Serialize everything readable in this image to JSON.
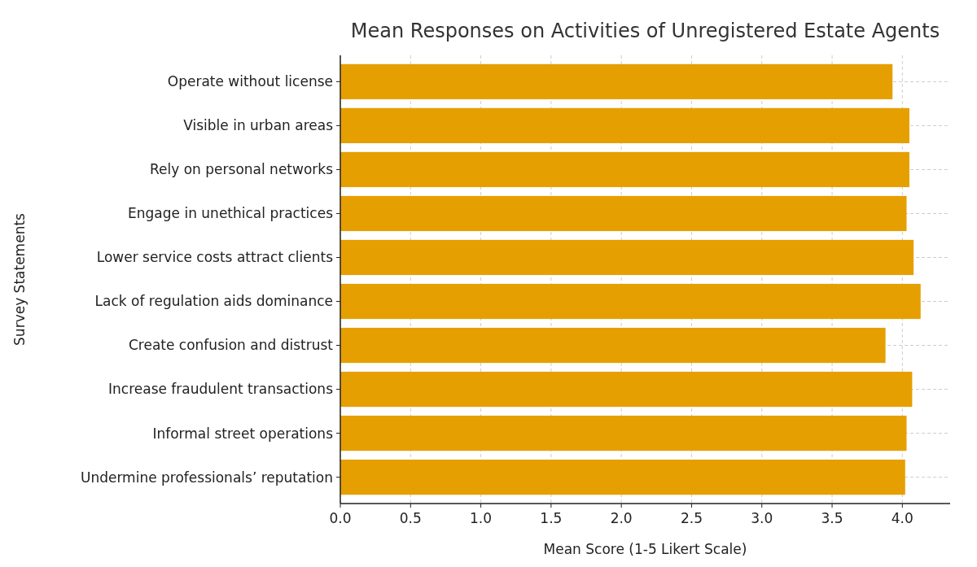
{
  "chart_data": {
    "type": "bar",
    "orientation": "horizontal",
    "title": "Mean Responses on Activities of Unregistered Estate Agents",
    "xlabel": "Mean Score (1-5 Likert Scale)",
    "ylabel": "Survey Statements",
    "categories": [
      "Operate without license",
      "Visible in urban areas",
      "Rely on personal networks",
      "Engage in unethical practices",
      "Lower service costs attract clients",
      "Lack of regulation aids dominance",
      "Create confusion and distrust",
      "Increase fraudulent transactions",
      "Informal street operations",
      "Undermine professionals’ reputation"
    ],
    "values": [
      3.93,
      4.05,
      4.05,
      4.03,
      4.08,
      4.13,
      3.88,
      4.07,
      4.03,
      4.02
    ],
    "color": "#e69f00",
    "xlim": [
      0,
      4.34
    ],
    "xticks": [
      {
        "value": 0,
        "label": "0.0"
      },
      {
        "value": 0.5,
        "label": "0.5"
      },
      {
        "value": 1,
        "label": "1.0"
      },
      {
        "value": 1.5,
        "label": "1.5"
      },
      {
        "value": 2,
        "label": "2.0"
      },
      {
        "value": 2.5,
        "label": "2.5"
      },
      {
        "value": 3,
        "label": "3.0"
      },
      {
        "value": 3.5,
        "label": "3.5"
      },
      {
        "value": 4,
        "label": "4.0"
      }
    ],
    "grid": true
  }
}
